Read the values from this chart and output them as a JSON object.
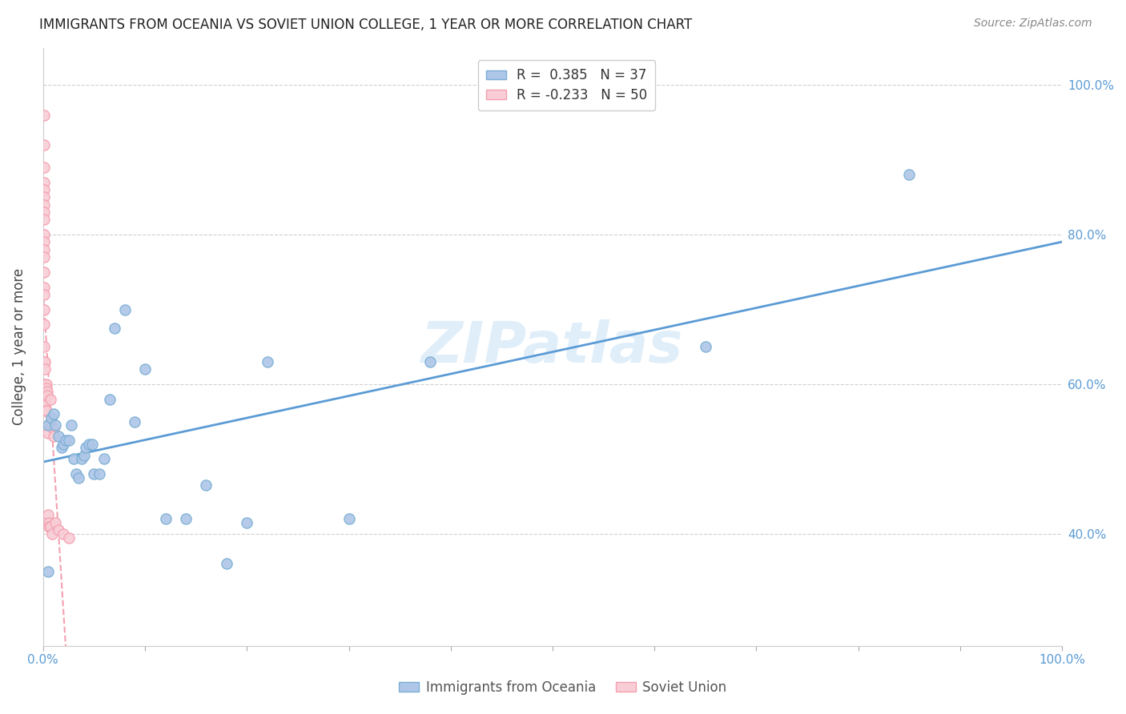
{
  "title": "IMMIGRANTS FROM OCEANIA VS SOVIET UNION COLLEGE, 1 YEAR OR MORE CORRELATION CHART",
  "source": "Source: ZipAtlas.com",
  "ylabel": "College, 1 year or more",
  "xmin": 0.0,
  "xmax": 1.0,
  "ymin": 0.25,
  "ymax": 1.05,
  "x_tick_labels": [
    "0.0%",
    "",
    "",
    "",
    "",
    "",
    "",
    "",
    "",
    "",
    "100.0%"
  ],
  "x_tick_vals": [
    0.0,
    0.1,
    0.2,
    0.3,
    0.4,
    0.5,
    0.6,
    0.7,
    0.8,
    0.9,
    1.0
  ],
  "y_tick_labels": [
    "40.0%",
    "60.0%",
    "80.0%",
    "100.0%"
  ],
  "y_tick_vals": [
    0.4,
    0.6,
    0.8,
    1.0
  ],
  "oceania_color": "#7bafd4",
  "soviet_color": "#f4a0b0",
  "oceania_marker_facecolor": "#aec6e8",
  "soviet_marker_facecolor": "#f8cdd5",
  "trendline_oceania_color": "#5b9bd5",
  "trendline_soviet_color": "#f4a0b0",
  "background_color": "#ffffff",
  "grid_color": "#d0d0d0",
  "R_oceania": 0.385,
  "N_oceania": 37,
  "R_soviet": -0.233,
  "N_soviet": 50,
  "legend_oceania_label": "R =  0.385   N = 37",
  "legend_soviet_label": "R = -0.233   N = 50",
  "oceania_x": [
    0.005,
    0.008,
    0.01,
    0.012,
    0.015,
    0.018,
    0.02,
    0.022,
    0.025,
    0.028,
    0.03,
    0.032,
    0.035,
    0.038,
    0.04,
    0.042,
    0.045,
    0.048,
    0.05,
    0.055,
    0.06,
    0.065,
    0.07,
    0.08,
    0.09,
    0.1,
    0.12,
    0.14,
    0.16,
    0.18,
    0.2,
    0.22,
    0.3,
    0.38,
    0.65,
    0.85,
    0.005
  ],
  "oceania_y": [
    0.545,
    0.555,
    0.56,
    0.545,
    0.53,
    0.515,
    0.52,
    0.525,
    0.525,
    0.545,
    0.5,
    0.48,
    0.475,
    0.5,
    0.505,
    0.515,
    0.52,
    0.52,
    0.48,
    0.48,
    0.5,
    0.58,
    0.675,
    0.7,
    0.55,
    0.62,
    0.42,
    0.42,
    0.465,
    0.36,
    0.415,
    0.63,
    0.42,
    0.63,
    0.65,
    0.88,
    0.35
  ],
  "soviet_x": [
    0.001,
    0.001,
    0.001,
    0.001,
    0.001,
    0.001,
    0.001,
    0.001,
    0.001,
    0.001,
    0.001,
    0.001,
    0.001,
    0.001,
    0.001,
    0.001,
    0.001,
    0.001,
    0.001,
    0.001,
    0.002,
    0.002,
    0.002,
    0.002,
    0.002,
    0.002,
    0.002,
    0.002,
    0.003,
    0.003,
    0.003,
    0.003,
    0.004,
    0.004,
    0.005,
    0.005,
    0.005,
    0.006,
    0.006,
    0.007,
    0.007,
    0.008,
    0.008,
    0.009,
    0.01,
    0.01,
    0.012,
    0.015,
    0.02,
    0.025
  ],
  "soviet_y": [
    0.96,
    0.92,
    0.89,
    0.87,
    0.86,
    0.85,
    0.84,
    0.83,
    0.82,
    0.8,
    0.79,
    0.78,
    0.77,
    0.75,
    0.73,
    0.72,
    0.7,
    0.68,
    0.65,
    0.63,
    0.63,
    0.62,
    0.6,
    0.595,
    0.59,
    0.585,
    0.575,
    0.565,
    0.6,
    0.595,
    0.585,
    0.565,
    0.59,
    0.585,
    0.545,
    0.535,
    0.425,
    0.415,
    0.41,
    0.58,
    0.41,
    0.555,
    0.545,
    0.4,
    0.54,
    0.53,
    0.415,
    0.405,
    0.4,
    0.395
  ]
}
